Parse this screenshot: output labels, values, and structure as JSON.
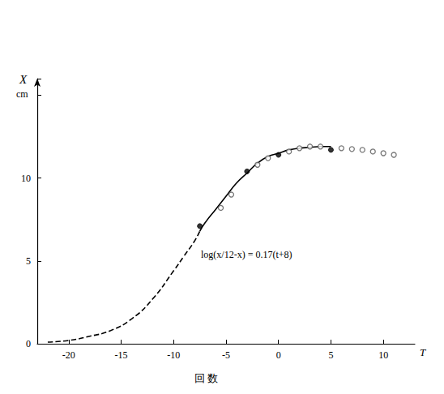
{
  "chart_data": {
    "type": "line",
    "x_label": "回 数",
    "x_symbol": "T",
    "y_label": "X",
    "y_unit": "cm",
    "annotation": "log(x/12-x) = 0.17(t+8)",
    "xlim": [
      -23,
      13
    ],
    "xticks": [
      -20,
      -15,
      -10,
      -5,
      0,
      5,
      10
    ],
    "ylim": [
      0,
      16
    ],
    "yticks": [
      0,
      5,
      10
    ],
    "grid": false,
    "series": [
      {
        "type": "line",
        "line_style": "dashed",
        "marker": "none",
        "color": "#000000",
        "x": [
          -22,
          -20,
          -18,
          -16,
          -14,
          -12,
          -10,
          -9,
          -8,
          -7.5
        ],
        "values": [
          0.1,
          0.2,
          0.45,
          0.8,
          1.5,
          2.7,
          4.4,
          5.3,
          6.2,
          6.8
        ]
      },
      {
        "type": "line",
        "line_style": "solid",
        "marker": "none",
        "color": "#000000",
        "x": [
          -7.5,
          -7,
          -6,
          -5,
          -4,
          -3,
          -2,
          -1,
          0,
          1,
          2,
          3,
          4,
          5
        ],
        "values": [
          6.8,
          7.3,
          8.1,
          8.9,
          9.7,
          10.3,
          10.9,
          11.3,
          11.5,
          11.7,
          11.8,
          11.85,
          11.9,
          11.9
        ]
      },
      {
        "type": "scatter",
        "marker": "filled_circle",
        "color": "#000000",
        "x": [
          -7.5,
          -3,
          0,
          5
        ],
        "values": [
          7.1,
          10.4,
          11.4,
          11.7
        ]
      },
      {
        "type": "scatter",
        "marker": "open_circle",
        "color": "#555555",
        "x": [
          -5.5,
          -4.5,
          -2,
          -1,
          1,
          2,
          3,
          4,
          6,
          7,
          8,
          9,
          10,
          11
        ],
        "values": [
          8.2,
          9.0,
          10.8,
          11.2,
          11.6,
          11.8,
          11.9,
          11.9,
          11.8,
          11.75,
          11.7,
          11.6,
          11.5,
          11.4
        ]
      }
    ]
  }
}
